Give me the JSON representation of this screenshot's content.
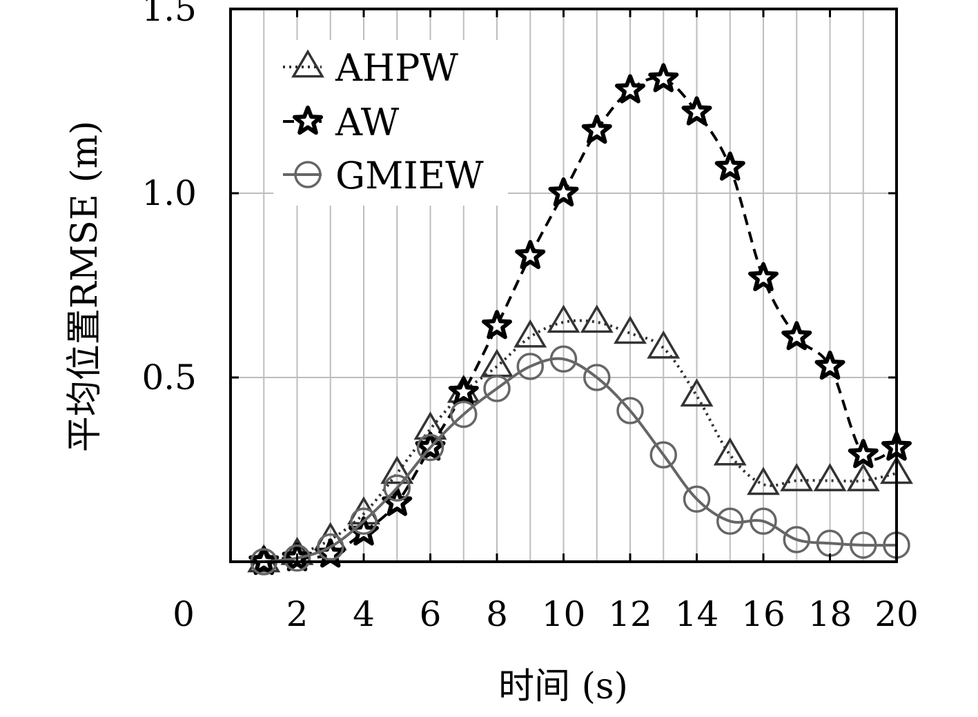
{
  "chart_data": {
    "type": "line",
    "title": "",
    "xlabel": "时间 (s)",
    "ylabel": "平均位置RMSE (m)",
    "xlim": [
      0,
      20
    ],
    "ylim": [
      0,
      1.5
    ],
    "x_origin_label": "0",
    "xticks": [
      "2",
      "4",
      "6",
      "8",
      "10",
      "12",
      "14",
      "16",
      "18",
      "20"
    ],
    "yticks": [
      "0.5",
      "1.0",
      "1.5"
    ],
    "grid": true,
    "legend_position": "top-left",
    "x": [
      1,
      2,
      3,
      4,
      5,
      6,
      7,
      8,
      9,
      10,
      11,
      12,
      13,
      14,
      15,
      16,
      17,
      18,
      19,
      20
    ],
    "series": [
      {
        "name": "AHPW",
        "marker": "triangle",
        "line_style": "dotted",
        "color": "#333333",
        "values": [
          0.0,
          0.02,
          0.06,
          0.13,
          0.24,
          0.36,
          0.46,
          0.53,
          0.61,
          0.65,
          0.65,
          0.62,
          0.58,
          0.45,
          0.29,
          0.21,
          0.22,
          0.22,
          0.22,
          0.24
        ]
      },
      {
        "name": "AW",
        "marker": "star",
        "line_style": "dashed",
        "color": "#000000",
        "values": [
          0.0,
          0.01,
          0.02,
          0.08,
          0.16,
          0.31,
          0.46,
          0.64,
          0.83,
          1.0,
          1.17,
          1.28,
          1.31,
          1.22,
          1.07,
          0.77,
          0.61,
          0.53,
          0.29,
          0.31
        ]
      },
      {
        "name": "GMIEW",
        "marker": "circle",
        "line_style": "solid",
        "color": "#666666",
        "values": [
          0.0,
          0.01,
          0.04,
          0.11,
          0.2,
          0.31,
          0.4,
          0.47,
          0.53,
          0.55,
          0.5,
          0.41,
          0.29,
          0.17,
          0.11,
          0.11,
          0.06,
          0.05,
          0.045,
          0.045
        ]
      }
    ]
  }
}
